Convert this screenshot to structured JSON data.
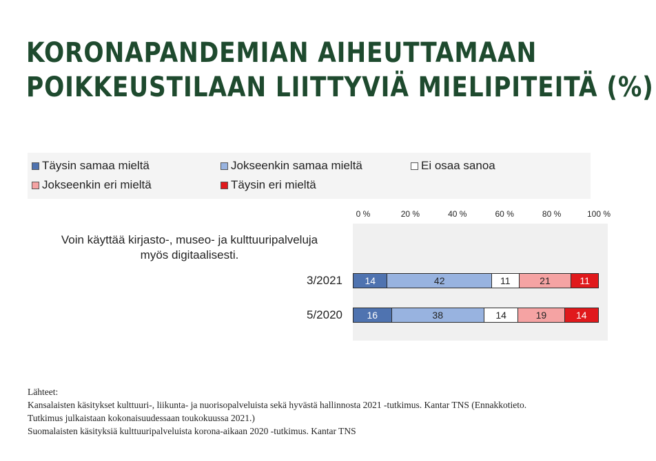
{
  "title_lines": [
    "KORONAPANDEMIAN AIHEUTTAMAAN",
    "POIKKEUSTILAAN LIITTYVIÄ MIELIPITEITÄ (%)"
  ],
  "question": {
    "line1": "Voin käyttää kirjasto-, museo- ja kulttuuripalveluja",
    "line2": "myös digitaalisesti."
  },
  "colors": {
    "taysin_samaa": "#4f73b0",
    "jokseenkin_samaa": "#98b3e0",
    "ei_osaa": "#ffffff",
    "jokseenkin_eri": "#f5a3a3",
    "taysin_eri": "#e0191c"
  },
  "chart_data": {
    "type": "bar",
    "orientation": "horizontal",
    "stacked": "percent",
    "categories": [
      "3/2021",
      "5/2020"
    ],
    "series": [
      {
        "name": "Täysin samaa mieltä",
        "values": [
          14,
          16
        ],
        "color": "#4f73b0"
      },
      {
        "name": "Jokseenkin samaa mieltä",
        "values": [
          42,
          38
        ],
        "color": "#98b3e0"
      },
      {
        "name": "Ei osaa sanoa",
        "values": [
          11,
          14
        ],
        "color": "#ffffff"
      },
      {
        "name": "Jokseenkin eri mieltä",
        "values": [
          21,
          19
        ],
        "color": "#f5a3a3"
      },
      {
        "name": "Täysin eri mieltä",
        "values": [
          11,
          14
        ],
        "color": "#e0191c"
      }
    ],
    "x_ticks": [
      "0 %",
      "20 %",
      "40 %",
      "60 %",
      "80 %",
      "100 %"
    ],
    "xlim": [
      0,
      100
    ],
    "legend_position": "top",
    "grid": false
  },
  "sources": [
    "Lähteet:",
    "Kansalaisten käsitykset kulttuuri-, liikunta- ja nuorisopalveluista sekä hyvästä hallinnosta 2021 -tutkimus. Kantar TNS (Ennakkotieto.",
    "Tutkimus julkaistaan kokonaisuudessaan toukokuussa 2021.)",
    "Suomalaisten käsityksiä kulttuuripalveluista korona-aikaan 2020 -tutkimus. Kantar TNS"
  ]
}
